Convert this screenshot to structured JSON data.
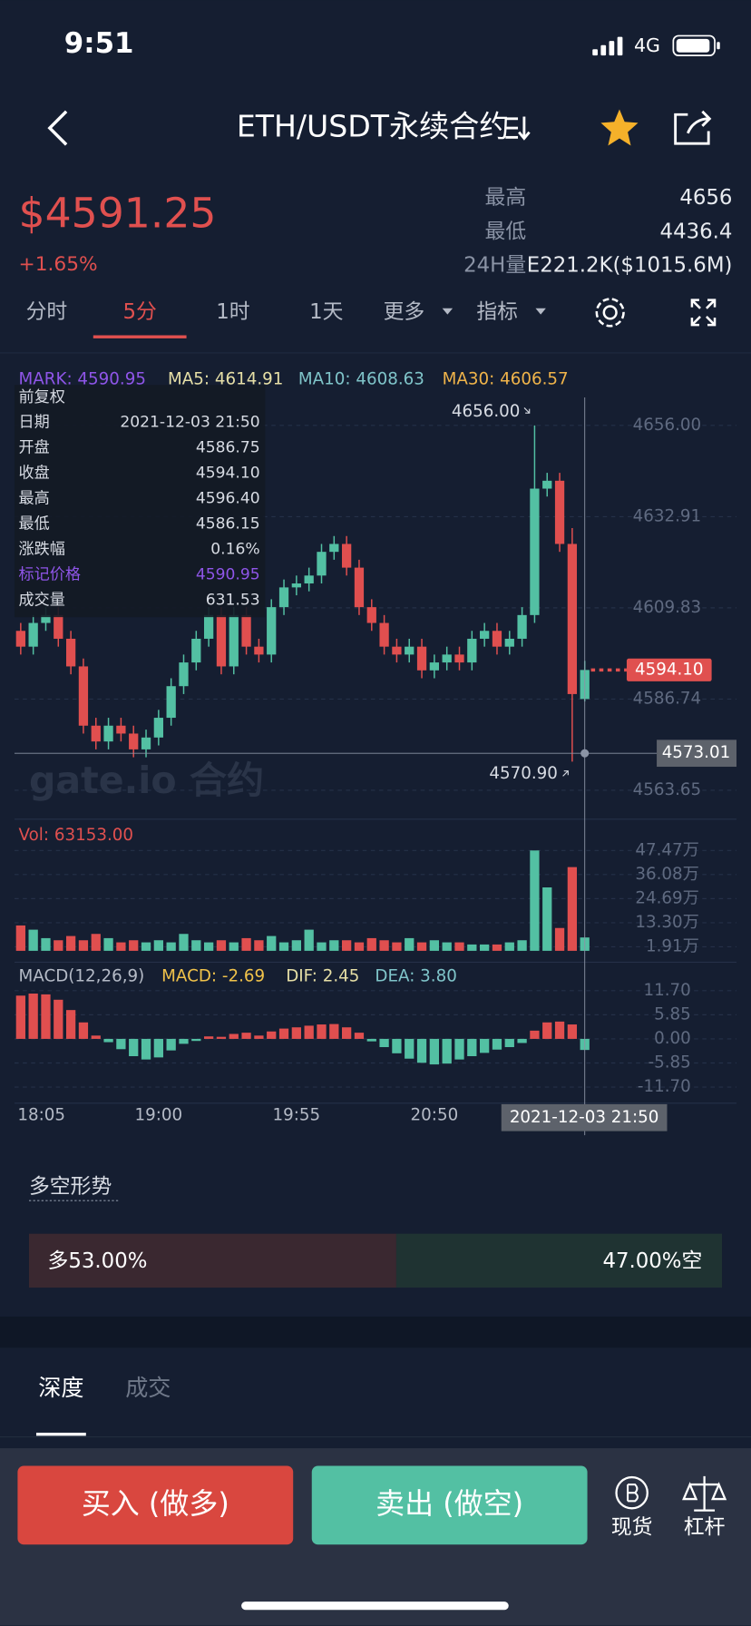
{
  "status_bar": {
    "time": "9:51",
    "network": "4G"
  },
  "header": {
    "title": "ETH/USDT永续合约"
  },
  "ticker": {
    "price": "$4591.25",
    "change": "+1.65%",
    "stats": [
      {
        "label": "最高",
        "value": "4656"
      },
      {
        "label": "最低",
        "value": "4436.4"
      },
      {
        "label": "24H量",
        "value": "E221.2K($1015.6M)"
      }
    ]
  },
  "tabs": {
    "items": [
      "分时",
      "5分",
      "1时",
      "1天",
      "更多",
      "指标"
    ],
    "active": 1
  },
  "tooltip": {
    "title": "前复权",
    "rows": [
      {
        "label": "日期",
        "value": "2021-12-03 21:50"
      },
      {
        "label": "开盘",
        "value": "4586.75"
      },
      {
        "label": "收盘",
        "value": "4594.10"
      },
      {
        "label": "最高",
        "value": "4596.40"
      },
      {
        "label": "最低",
        "value": "4586.15"
      },
      {
        "label": "涨跌幅",
        "value": "0.16%"
      },
      {
        "label": "标记价格",
        "value": "4590.95",
        "color": "#8f55e8"
      },
      {
        "label": "成交量",
        "value": "631.53"
      }
    ]
  },
  "chart_data": [
    {
      "type": "candlestick",
      "watermark": "gate.io 合约",
      "indicators": [
        {
          "label": "MARK: 4590.95",
          "color": "#8f55e8"
        },
        {
          "label": "MA5: 4614.91",
          "color": "#e6dfa6"
        },
        {
          "label": "MA10: 4608.63",
          "color": "#7fc4c9"
        },
        {
          "label": "MA30: 4606.57",
          "color": "#f0b44a"
        }
      ],
      "categories": [
        "18:05",
        null,
        null,
        null,
        null,
        null,
        null,
        null,
        null,
        null,
        null,
        "19:00",
        null,
        null,
        null,
        null,
        null,
        null,
        null,
        null,
        null,
        null,
        "19:55",
        null,
        null,
        null,
        null,
        null,
        null,
        null,
        null,
        null,
        null,
        "20:50",
        null,
        null,
        null,
        null,
        null,
        null,
        null,
        null,
        null,
        null,
        null,
        null
      ],
      "open": [
        4604,
        4600,
        4606,
        4608,
        4602,
        4595,
        4580,
        4576,
        4580,
        4578,
        4574,
        4577,
        4582,
        4590,
        4596,
        4602,
        4608,
        4595,
        4608,
        4600,
        4598,
        4610,
        4615,
        4616,
        4618,
        4624,
        4626,
        4620,
        4610,
        4606,
        4600,
        4598,
        4600,
        4594,
        4596,
        4598,
        4596,
        4602,
        4604,
        4600,
        4602,
        4608,
        4640,
        4642,
        4626,
        4586.75
      ],
      "high": [
        4606,
        4608,
        4610,
        4610,
        4604,
        4597,
        4582,
        4582,
        4582,
        4580,
        4579,
        4584,
        4592,
        4598,
        4604,
        4610,
        4610,
        4610,
        4610,
        4602,
        4612,
        4617,
        4618,
        4620,
        4626,
        4628,
        4628,
        4622,
        4612,
        4608,
        4602,
        4602,
        4602,
        4598,
        4600,
        4600,
        4604,
        4606,
        4606,
        4604,
        4610,
        4656,
        4644,
        4644,
        4630,
        4596.4
      ],
      "low": [
        4598,
        4598,
        4604,
        4600,
        4593,
        4578,
        4574,
        4574,
        4576,
        4572,
        4572,
        4575,
        4580,
        4588,
        4594,
        4600,
        4593,
        4593,
        4598,
        4596,
        4596,
        4608,
        4613,
        4614,
        4616,
        4622,
        4618,
        4608,
        4604,
        4598,
        4596,
        4596,
        4592,
        4592,
        4594,
        4594,
        4594,
        4600,
        4598,
        4598,
        4600,
        4606,
        4638,
        4624,
        4570.9,
        4586.15
      ],
      "close": [
        4600,
        4606,
        4608,
        4602,
        4595,
        4580,
        4576,
        4580,
        4578,
        4574,
        4577,
        4582,
        4590,
        4596,
        4602,
        4608,
        4595,
        4608,
        4600,
        4598,
        4610,
        4615,
        4616,
        4618,
        4624,
        4626,
        4620,
        4610,
        4606,
        4600,
        4598,
        4600,
        4594,
        4596,
        4598,
        4596,
        4602,
        4604,
        4600,
        4602,
        4608,
        4640,
        4642,
        4626,
        4588,
        4594.1
      ],
      "up_color": "#53c0a3",
      "down_color": "#e04f4f",
      "ylim": [
        4556.32,
        4663.08
      ],
      "yticks": [
        {
          "value": 4656,
          "label": "4656.00"
        },
        4632.91,
        4609.83,
        4586.74,
        4563.65
      ],
      "grid": true,
      "high_label": "4656.00",
      "low_label": "4570.90",
      "last_label": "4594.10",
      "crosshair": {
        "price": 4573.01,
        "time": "2021-12-03 21:50"
      }
    },
    {
      "type": "volume",
      "title": "Vol: 63153.00",
      "values": [
        12,
        10,
        6,
        5,
        7,
        5,
        8,
        6,
        4,
        5,
        4,
        5,
        4,
        8,
        5,
        4,
        5,
        4,
        6,
        5,
        7,
        4,
        5,
        10,
        4,
        5,
        5,
        4,
        6,
        5,
        4,
        6,
        4,
        5,
        4,
        4,
        3,
        3,
        3,
        4,
        5,
        47.47,
        30,
        10.8,
        39.6,
        6.3153
      ],
      "ylim": [
        0,
        59.8
      ],
      "yticks": [
        {
          "value": 47.47,
          "label": "47.47万"
        },
        {
          "value": 36.08,
          "label": "36.08万"
        },
        {
          "value": 24.69,
          "label": "24.69万"
        },
        {
          "value": 13.3,
          "label": "13.30万"
        },
        {
          "value": 1.91,
          "label": "1.91万"
        }
      ],
      "grid": true
    },
    {
      "type": "macd",
      "title": "MACD(12,26,9)",
      "indicators": [
        {
          "label": "MACD: -2.69",
          "color": "#f0c24a"
        },
        {
          "label": "DIF: 2.45",
          "color": "#e6dfa6"
        },
        {
          "label": "DEA: 3.80",
          "color": "#7fc4c9"
        }
      ],
      "values": [
        10.5,
        11,
        10.8,
        9.5,
        7,
        4,
        0.8,
        -0.8,
        -2.5,
        -4.2,
        -5,
        -4.5,
        -2.8,
        -1.2,
        -0.5,
        0.6,
        0.5,
        1.2,
        1.5,
        0.8,
        1.8,
        2.5,
        2.8,
        3.2,
        3.5,
        3.6,
        2.8,
        1.5,
        -0.6,
        -2,
        -3.5,
        -4.8,
        -5.8,
        -6.2,
        -6,
        -5,
        -4.2,
        -3.4,
        -2.6,
        -2,
        -1,
        2,
        4,
        4.2,
        3.5,
        -2.69
      ],
      "ylim": [
        -15.1,
        17.6
      ],
      "yticks": [
        {
          "value": 11.7,
          "label": "11.70"
        },
        5.85,
        {
          "value": 0,
          "label": "0.00"
        },
        -5.85,
        {
          "value": -11.7,
          "label": "-11.70"
        }
      ],
      "grid": true
    }
  ],
  "sentiment": {
    "title": "多空形势",
    "long": {
      "value": 53,
      "label": "多53.00%"
    },
    "short": {
      "value": 47,
      "label": "47.00%空"
    }
  },
  "bottom_tabs": {
    "items": [
      "深度",
      "成交"
    ],
    "active": 0
  },
  "actions": {
    "buy": "买入 (做多)",
    "sell": "卖出 (做空)",
    "spot": "现货",
    "margin": "杠杆"
  }
}
